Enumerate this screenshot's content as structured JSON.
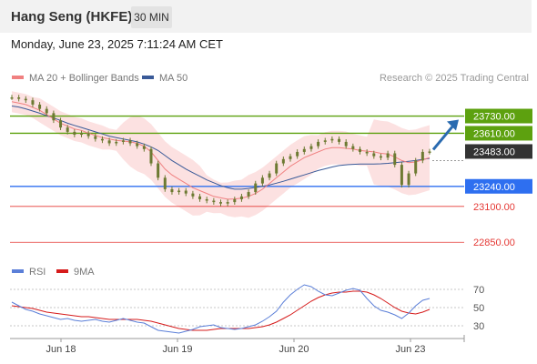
{
  "header": {
    "title": "Hang Seng (HKFE)",
    "timeframe": "30 MIN"
  },
  "datetime": "Monday, June 23, 2025 7:11:24 AM CET",
  "legend": {
    "ma20_bb": "MA 20 + Bollinger Bands",
    "ma50": "MA 50",
    "credit": "Research © 2025 Trading Central",
    "rsi": "RSI",
    "rsi_ma": "9MA"
  },
  "colors": {
    "resistance": "#5da10f",
    "support": "#2e6ff0",
    "target": "#e53935",
    "ma20": "#f08080",
    "ma50": "#3a5a98",
    "bollinger": "#fbd7d7",
    "candle": "#6d7a32",
    "last_price": "#333333",
    "arrow": "#2a6bb0",
    "rsi": "#5b7fd8",
    "rsi_ma": "#d61b1b"
  },
  "chart_data": [
    {
      "type": "line",
      "title": "Hang Seng (HKFE) 30 MIN",
      "x_tick_labels": [
        "Jun 18",
        "Jun 19",
        "Jun 20",
        "Jun 23"
      ],
      "y_range": [
        22750,
        23930
      ],
      "levels": [
        {
          "label": "23730.00",
          "value": 23730,
          "kind": "resistance"
        },
        {
          "label": "23610.00",
          "value": 23610,
          "kind": "resistance"
        },
        {
          "label": "23483.00",
          "value": 23483,
          "kind": "last"
        },
        {
          "label": "23240.00",
          "value": 23240,
          "kind": "support"
        },
        {
          "label": "23100.00",
          "value": 23100,
          "kind": "target"
        },
        {
          "label": "22850.00",
          "value": 22850,
          "kind": "target"
        }
      ],
      "series": [
        {
          "name": "Price",
          "values": [
            23860,
            23850,
            23840,
            23810,
            23780,
            23750,
            23700,
            23650,
            23620,
            23600,
            23610,
            23590,
            23570,
            23560,
            23540,
            23550,
            23560,
            23540,
            23520,
            23500,
            23400,
            23300,
            23220,
            23200,
            23210,
            23190,
            23170,
            23150,
            23140,
            23130,
            23120,
            23130,
            23150,
            23170,
            23200,
            23260,
            23300,
            23330,
            23400,
            23430,
            23450,
            23480,
            23500,
            23520,
            23550,
            23560,
            23570,
            23550,
            23520,
            23500,
            23480,
            23470,
            23450,
            23440,
            23470,
            23390,
            23250,
            23330,
            23420,
            23480,
            23483
          ]
        },
        {
          "name": "MA 20",
          "values": [
            23830,
            23820,
            23810,
            23790,
            23770,
            23740,
            23710,
            23680,
            23660,
            23640,
            23630,
            23610,
            23595,
            23580,
            23570,
            23560,
            23556,
            23550,
            23540,
            23520,
            23480,
            23420,
            23360,
            23320,
            23290,
            23260,
            23230,
            23210,
            23190,
            23170,
            23160,
            23150,
            23152,
            23158,
            23170,
            23190,
            23220,
            23260,
            23300,
            23340,
            23380,
            23410,
            23440,
            23460,
            23480,
            23500,
            23510,
            23510,
            23505,
            23500,
            23490,
            23485,
            23480,
            23470,
            23465,
            23445,
            23420,
            23405,
            23410,
            23425,
            23440
          ]
        },
        {
          "name": "MA 50",
          "values": [
            23800,
            23793,
            23780,
            23765,
            23750,
            23733,
            23716,
            23700,
            23680,
            23665,
            23650,
            23635,
            23620,
            23605,
            23590,
            23580,
            23570,
            23560,
            23550,
            23535,
            23515,
            23490,
            23455,
            23420,
            23390,
            23360,
            23335,
            23310,
            23285,
            23265,
            23245,
            23230,
            23220,
            23220,
            23225,
            23232,
            23240,
            23250,
            23262,
            23275,
            23290,
            23305,
            23320,
            23335,
            23350,
            23362,
            23375,
            23385,
            23390,
            23393,
            23395,
            23395,
            23396,
            23397,
            23400,
            23405,
            23410,
            23415,
            23420,
            23428,
            23435
          ]
        }
      ],
      "projection": {
        "from": 23483,
        "to": 23730
      }
    },
    {
      "type": "line",
      "title": "RSI",
      "y_tick_labels": [
        "70",
        "50",
        "30"
      ],
      "y_ticks": [
        70,
        50,
        30
      ],
      "y_range": [
        20,
        80
      ],
      "series": [
        {
          "name": "RSI",
          "values": [
            56,
            52,
            48,
            46,
            43,
            41,
            39,
            37,
            38,
            36,
            35,
            36,
            37,
            35,
            34,
            36,
            38,
            36,
            34,
            33,
            29,
            25,
            24,
            23,
            22,
            24,
            26,
            29,
            30,
            31,
            28,
            27,
            26,
            27,
            29,
            31,
            35,
            40,
            46,
            56,
            64,
            70,
            75,
            73,
            68,
            64,
            63,
            66,
            69,
            71,
            69,
            60,
            52,
            47,
            45,
            42,
            38,
            44,
            52,
            58,
            60
          ]
        },
        {
          "name": "9MA",
          "values": [
            52,
            51,
            50,
            49,
            47,
            45,
            44,
            43,
            42,
            41,
            40,
            40,
            39,
            38,
            37,
            37,
            37,
            37,
            37,
            36,
            35,
            33,
            31,
            29,
            27,
            26,
            25,
            25,
            25,
            26,
            27,
            27,
            27,
            27,
            27,
            28,
            29,
            31,
            34,
            38,
            42,
            47,
            52,
            57,
            61,
            64,
            66,
            67,
            67,
            68,
            68,
            67,
            64,
            60,
            55,
            50,
            46,
            44,
            43,
            45,
            48
          ]
        }
      ]
    }
  ]
}
